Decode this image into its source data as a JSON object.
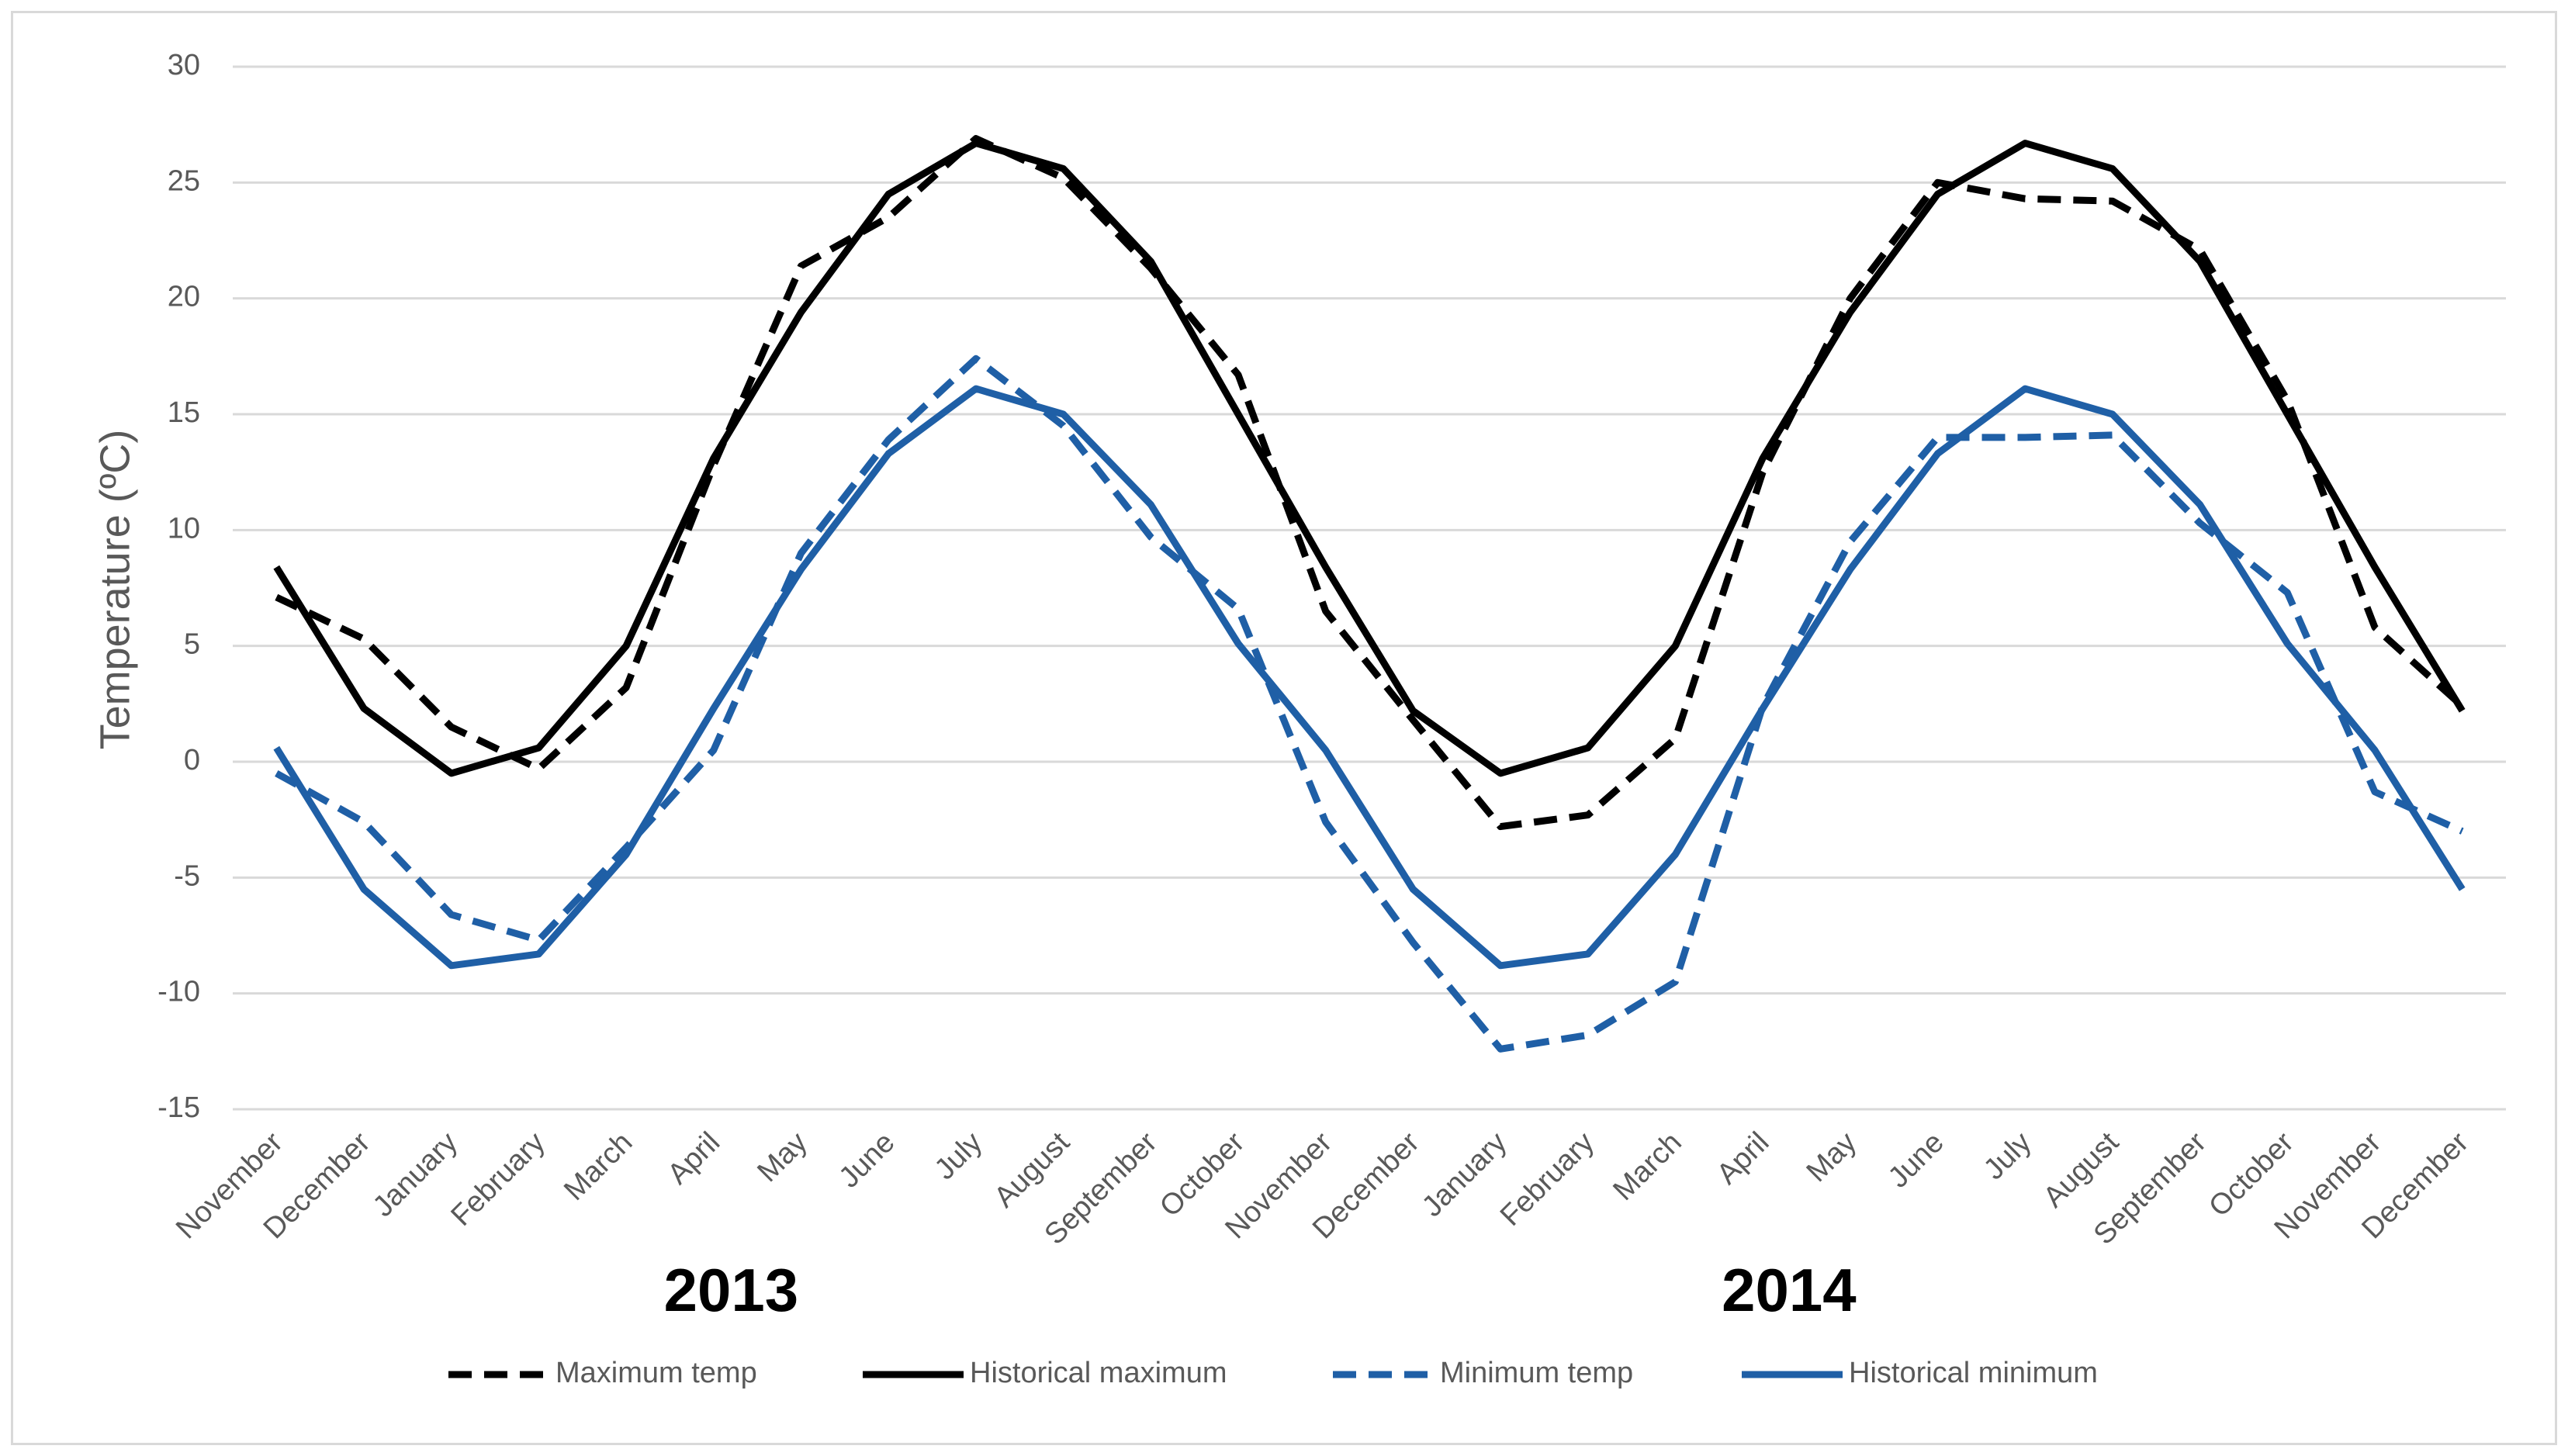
{
  "chart_data": {
    "type": "line",
    "title": "",
    "ylabel": "Temperature (ºC)",
    "xlabel": "",
    "ylim": [
      -15,
      30
    ],
    "yticks": [
      30,
      25,
      20,
      15,
      10,
      5,
      0,
      -5,
      -10,
      -15
    ],
    "grid": true,
    "legend_position": "bottom",
    "categories": [
      "November",
      "December",
      "January",
      "February",
      "March",
      "April",
      "May",
      "June",
      "July",
      "August",
      "September",
      "October",
      "November",
      "December",
      "January",
      "February",
      "March",
      "April",
      "May",
      "June",
      "July",
      "August",
      "September",
      "October",
      "November",
      "December"
    ],
    "year_labels": [
      {
        "label": "2013",
        "category_index": 5.2
      },
      {
        "label": "2014",
        "category_index": 17.3
      }
    ],
    "series": [
      {
        "name": "Maximum temp",
        "color": "#000000",
        "dash": "dashed",
        "values": [
          7.1,
          5.3,
          1.5,
          -0.3,
          3.2,
          12.8,
          21.4,
          23.5,
          26.9,
          25.2,
          21.3,
          16.7,
          6.5,
          1.8,
          -2.8,
          -2.3,
          1.0,
          12.5,
          20.0,
          25.0,
          24.3,
          24.2,
          22.1,
          15.6,
          5.8,
          2.4
        ]
      },
      {
        "name": "Historical maximum",
        "color": "#000000",
        "dash": "solid",
        "values": [
          8.4,
          2.3,
          -0.5,
          0.6,
          5.0,
          13.1,
          19.4,
          24.5,
          26.7,
          25.6,
          21.6,
          15.0,
          8.4,
          2.2,
          -0.5,
          0.6,
          5.0,
          13.1,
          19.4,
          24.5,
          26.7,
          25.6,
          21.6,
          15.0,
          8.4,
          2.2
        ]
      },
      {
        "name": "Minimum temp",
        "color": "#1f5fa6",
        "dash": "dashed",
        "values": [
          -0.5,
          -2.6,
          -6.6,
          -7.7,
          -3.7,
          0.5,
          9.0,
          13.9,
          17.4,
          14.5,
          9.7,
          6.6,
          -2.6,
          -7.8,
          -12.4,
          -11.8,
          -9.5,
          2.4,
          9.5,
          14.0,
          14.0,
          14.1,
          10.3,
          7.3,
          -1.3,
          -3.0
        ]
      },
      {
        "name": "Historical minimum",
        "color": "#1f5fa6",
        "dash": "solid",
        "values": [
          0.6,
          -5.5,
          -8.8,
          -8.3,
          -4.0,
          2.3,
          8.3,
          13.3,
          16.1,
          15.0,
          11.1,
          5.1,
          0.5,
          -5.5,
          -8.8,
          -8.3,
          -4.0,
          2.3,
          8.3,
          13.3,
          16.1,
          15.0,
          11.1,
          5.1,
          0.5,
          -5.5
        ]
      }
    ]
  }
}
